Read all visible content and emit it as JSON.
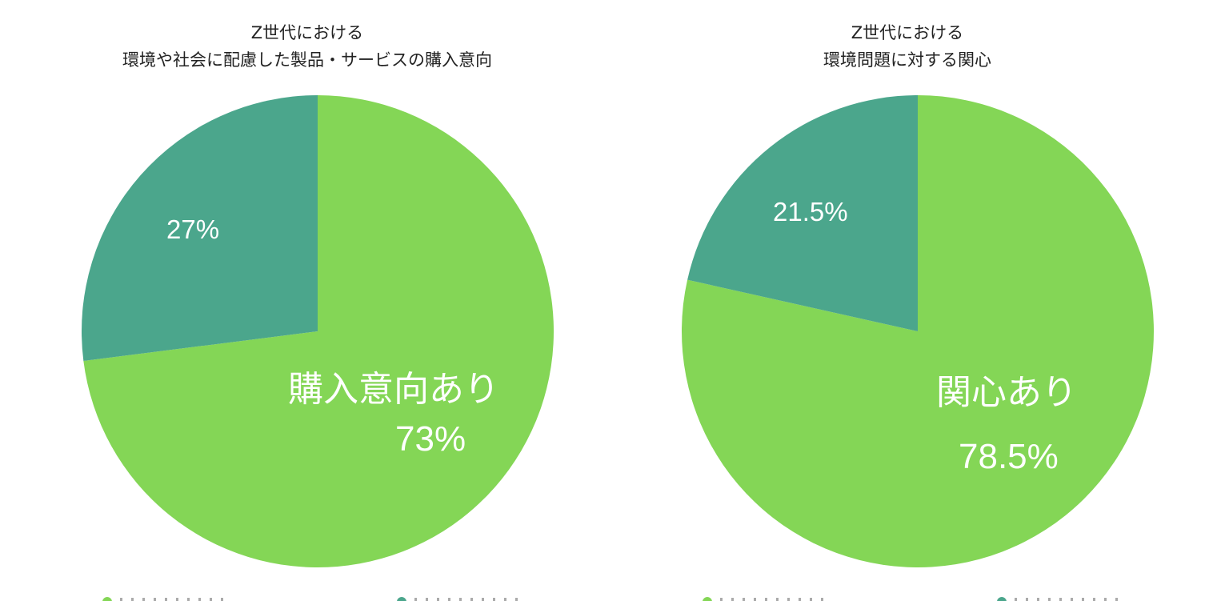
{
  "colors": {
    "green": "#84D656",
    "teal": "#4BA68C",
    "title_text": "#222222",
    "label_text": "#FFFFFF",
    "background": "#FFFFFF"
  },
  "chart_data": [
    {
      "type": "pie",
      "title": "Z世代における 環境や社会に配慮した製品・サービスの購入意向",
      "title_lines": [
        "Z世代における",
        "環境や社会に配慮した製品・サービスの購入意向"
      ],
      "slices": [
        {
          "label": "購入意向あり",
          "value": 73,
          "display": "73%",
          "color": "#84D656"
        },
        {
          "label": "",
          "value": 27,
          "display": "27%",
          "color": "#4BA68C"
        }
      ],
      "start_angle": "12 o'clock, clockwise",
      "legend_position": "bottom (clipped)"
    },
    {
      "type": "pie",
      "title": "Z世代における 環境問題に対する関心",
      "title_lines": [
        "Z世代における",
        "環境問題に対する関心"
      ],
      "slices": [
        {
          "label": "関心あり",
          "value": 78.5,
          "display": "78.5%",
          "color": "#84D656"
        },
        {
          "label": "",
          "value": 21.5,
          "display": "21.5%",
          "color": "#4BA68C"
        }
      ],
      "start_angle": "12 o'clock, clockwise",
      "legend_position": "bottom (clipped)"
    }
  ]
}
